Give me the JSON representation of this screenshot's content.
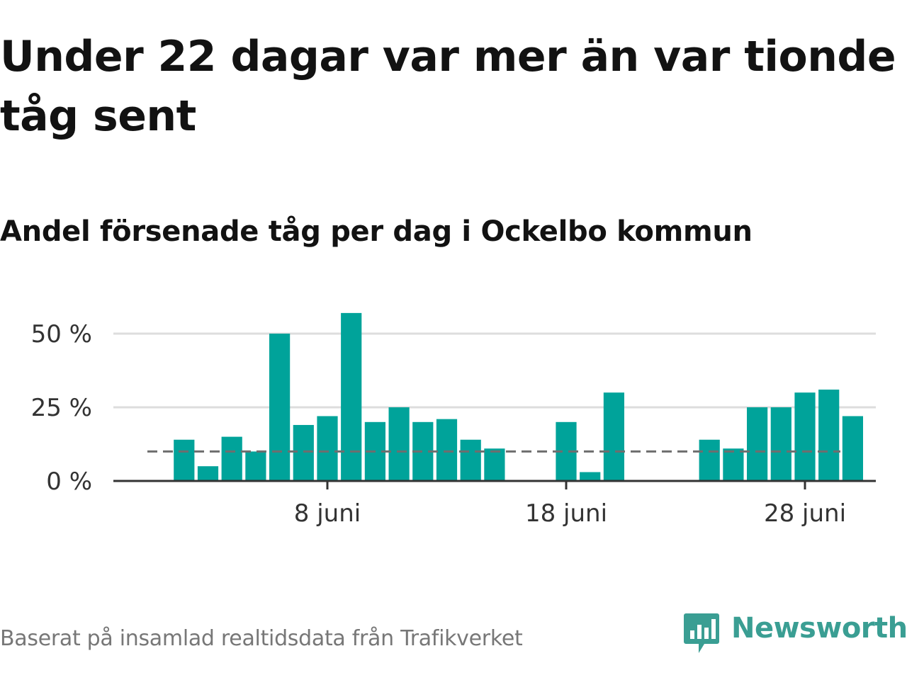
{
  "title": "Under 22 dagar var mer än var tionde tåg sent",
  "subtitle": "Andel försenade tåg per dag i Ockelbo kommun",
  "footer": {
    "source": "Baserat på insamlad realtidsdata från Trafikverket",
    "brand": "Newsworthy"
  },
  "colors": {
    "bar": "#00a39a",
    "reference_line": "#6e6e6e",
    "gridline": "#dddddd",
    "axis": "#333333",
    "brand": "#3a9e93"
  },
  "chart_data": {
    "type": "bar",
    "title": "Andel försenade tåg per dag i Ockelbo kommun",
    "xlabel": "",
    "ylabel": "",
    "x_unit": "day of June",
    "x_range": [
      0,
      32
    ],
    "x": [
      2,
      3,
      4,
      5,
      6,
      7,
      8,
      9,
      10,
      11,
      12,
      13,
      14,
      15,
      16,
      17,
      18,
      19,
      20,
      21,
      22,
      23,
      24,
      25,
      26,
      27,
      28,
      29,
      30
    ],
    "values": [
      14,
      5,
      15,
      10,
      50,
      19,
      22,
      57,
      20,
      25,
      20,
      21,
      14,
      11,
      null,
      null,
      20,
      3,
      30,
      null,
      null,
      null,
      14,
      11,
      25,
      25,
      30,
      31,
      22
    ],
    "reference_line": 10,
    "ylim": [
      0,
      57
    ],
    "yticks": [
      {
        "value": 0,
        "label": "0 %"
      },
      {
        "value": 25,
        "label": "25 %"
      },
      {
        "value": 50,
        "label": "50 %"
      }
    ],
    "xticks": [
      {
        "value": 8,
        "label": "8 juni"
      },
      {
        "value": 18,
        "label": "18 juni"
      },
      {
        "value": 28,
        "label": "28 juni"
      }
    ],
    "grid": true,
    "legend": "none"
  }
}
